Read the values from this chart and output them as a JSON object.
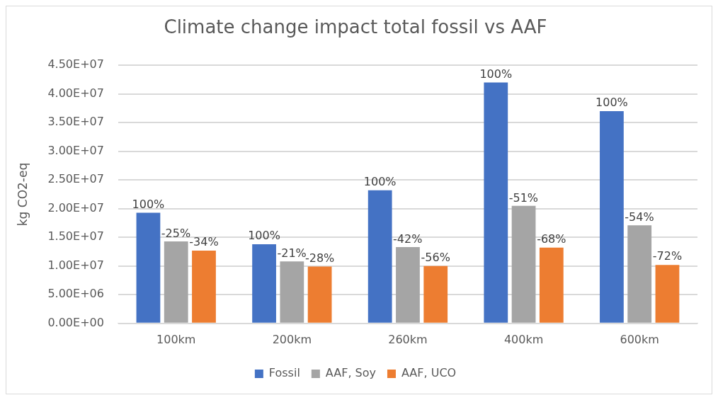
{
  "chart_data": {
    "type": "bar",
    "title": "Climate change impact total fossil vs AAF",
    "ylabel": "kg CO2-eq",
    "categories": [
      "100km",
      "200km",
      "260km",
      "400km",
      "600km"
    ],
    "series": [
      {
        "name": "Fossil",
        "color": "#4472c4",
        "values": [
          19300000,
          13800000,
          23200000,
          42000000,
          37000000
        ]
      },
      {
        "name": "AAF, Soy",
        "color": "#a5a5a5",
        "values": [
          14300000,
          10800000,
          13300000,
          20500000,
          17100000
        ]
      },
      {
        "name": "AAF, UCO",
        "color": "#ed7d31",
        "values": [
          12700000,
          9900000,
          10000000,
          13200000,
          10200000
        ]
      }
    ],
    "annotations": [
      "100%",
      "100%",
      "100%",
      "100%",
      "100%",
      "-25%",
      "-21%",
      "-42%",
      "-51%",
      "-54%",
      "-34%",
      "-28%",
      "-56%",
      "-68%",
      "-72%"
    ],
    "ylim": [
      0,
      45000000
    ],
    "yticks": [
      {
        "value": 0,
        "label": "0.00E+00"
      },
      {
        "value": 5000000,
        "label": "5.00E+06"
      },
      {
        "value": 10000000,
        "label": "1.00E+07"
      },
      {
        "value": 15000000,
        "label": "1.50E+07"
      },
      {
        "value": 20000000,
        "label": "2.00E+07"
      },
      {
        "value": 25000000,
        "label": "2.50E+07"
      },
      {
        "value": 30000000,
        "label": "3.00E+07"
      },
      {
        "value": 35000000,
        "label": "3.50E+07"
      },
      {
        "value": 40000000,
        "label": "4.00E+07"
      },
      {
        "value": 45000000,
        "label": "4.50E+07"
      }
    ],
    "grid": "y",
    "legend": "bottom"
  }
}
